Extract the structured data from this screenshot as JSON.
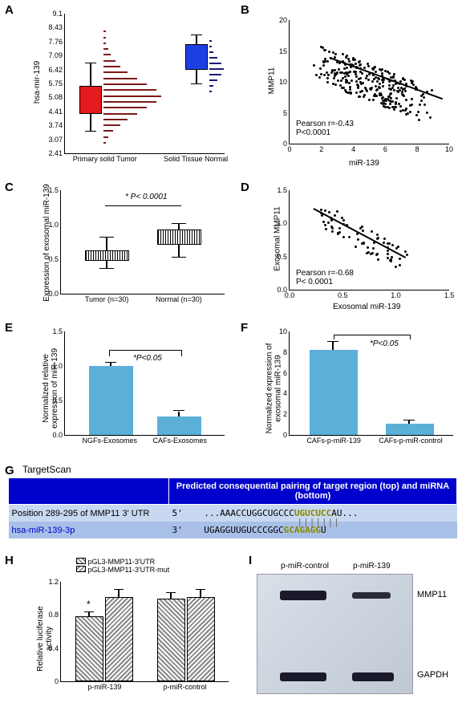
{
  "panels": {
    "A": {
      "label": "A",
      "ylabel": "hsa-mir-139",
      "yticks": [
        "2.41",
        "3.07",
        "3.74",
        "4.41",
        "5.08",
        "5.75",
        "6.42",
        "7.09",
        "7.76",
        "8.43",
        "9.1"
      ],
      "xticks": [
        "Primary solid Tumor",
        "Solid Tissue Normal"
      ],
      "tumor_box": {
        "fill": "#e41a1c",
        "q1": 4.5,
        "med": 5.1,
        "q3": 5.8,
        "wl": 3.7,
        "wh": 6.5
      },
      "normal_box": {
        "fill": "#1c3fe4",
        "q1": 6.3,
        "med": 6.9,
        "q3": 7.4,
        "wl": 5.7,
        "wh": 7.8
      }
    },
    "B": {
      "label": "B",
      "ylabel": "MMP11",
      "xlabel": "miR-139",
      "yticks": [
        0,
        5,
        10,
        15,
        20
      ],
      "xticks": [
        0,
        2,
        4,
        6,
        8,
        10
      ],
      "stat1": "Pearson r=-0.43",
      "stat2": "P<0.0001"
    },
    "C": {
      "label": "C",
      "ylabel": "Expression of exosomal miR-139",
      "yticks": [
        "0.0",
        "0.5",
        "1.0",
        "1.5"
      ],
      "xticks": [
        "Tumor (n=30)",
        "Normal (n=30)"
      ],
      "sig": "* P< 0.0001",
      "boxes": [
        {
          "q1": 0.48,
          "med": 0.55,
          "q3": 0.62,
          "wl": 0.38,
          "wh": 0.82
        },
        {
          "q1": 0.7,
          "med": 0.8,
          "q3": 0.92,
          "wl": 0.55,
          "wh": 1.02
        }
      ]
    },
    "D": {
      "label": "D",
      "ylabel": "Exosomal MMP11",
      "xlabel": "Exosomal miR-139",
      "yticks": [
        "0.0",
        "0.5",
        "1.0",
        "1.5"
      ],
      "xticks": [
        "0.0",
        "0.5",
        "1.0",
        "1.5"
      ],
      "stat1": "Pearson r=-0.68",
      "stat2": "P< 0.0001"
    },
    "E": {
      "label": "E",
      "ylabel": "Normalized relative\nexpression of miR-139",
      "yticks": [
        "0.0",
        "0.5",
        "1.0",
        "1.5"
      ],
      "bars": [
        {
          "label": "NGFs-Exosomes",
          "val": 1.0,
          "err": 0.05
        },
        {
          "label": "CAFs-Exosomes",
          "val": 0.27,
          "err": 0.07
        }
      ],
      "sig": "*P<0.05",
      "bar_color": "#5bb0d8"
    },
    "F": {
      "label": "F",
      "ylabel": "Normalized expression of\nexosomal miR-139",
      "yticks": [
        0,
        2,
        4,
        6,
        8,
        10
      ],
      "bars": [
        {
          "label": "CAFs-p-miR-139",
          "val": 8.2,
          "err": 0.8
        },
        {
          "label": "CAFs-p-miR-control",
          "val": 1.1,
          "err": 0.2
        }
      ],
      "sig": "*P<0.05",
      "bar_color": "#5bb0d8"
    },
    "G": {
      "label": "G",
      "title": "TargetScan",
      "header_bg": "#0000cc",
      "row_bg1": "#c8d8f0",
      "row_bg2": "#a8c0e8",
      "col1_header": "",
      "col2_header": "Predicted consequential pairing of target region (top) and miRNA (bottom)",
      "row1_col1": "Position 289-295 of MMP11 3' UTR",
      "row1_col2_prefix": "5'",
      "row1_col2_seq": "...AAACCUGGCUGCCC",
      "row1_col2_match": "UGUCUCC",
      "row1_col2_suffix": "AU...",
      "row2_col1": "hsa-miR-139-3p",
      "row2_col1_color": "#0000cc",
      "row2_col2_prefix": "3'",
      "row2_col2_seq": "UGAGGUUGUCCCGGC",
      "row2_col2_match": "GCAGAGG",
      "row2_col2_suffix": "U"
    },
    "H": {
      "label": "H",
      "ylabel": "Relative luciferase\nactivity",
      "yticks": [
        "0",
        "0.4",
        "0.8",
        "1.2"
      ],
      "legend": [
        "pGL3-MMP11-3'UTR",
        "pGL3-MMP11-3'UTR-mut"
      ],
      "groups": [
        {
          "label": "p-miR-139",
          "vals": [
            0.78,
            1.02
          ],
          "errs": [
            0.05,
            0.1
          ]
        },
        {
          "label": "p-miR-control",
          "vals": [
            1.0,
            1.02
          ],
          "errs": [
            0.08,
            0.1
          ]
        }
      ],
      "sig": "*"
    },
    "I": {
      "label": "I",
      "lanes": [
        "p-miR-control",
        "p-miR-139"
      ],
      "bands": [
        "MMP11",
        "GAPDH"
      ],
      "blot_bg": "#d0d8e0"
    }
  }
}
